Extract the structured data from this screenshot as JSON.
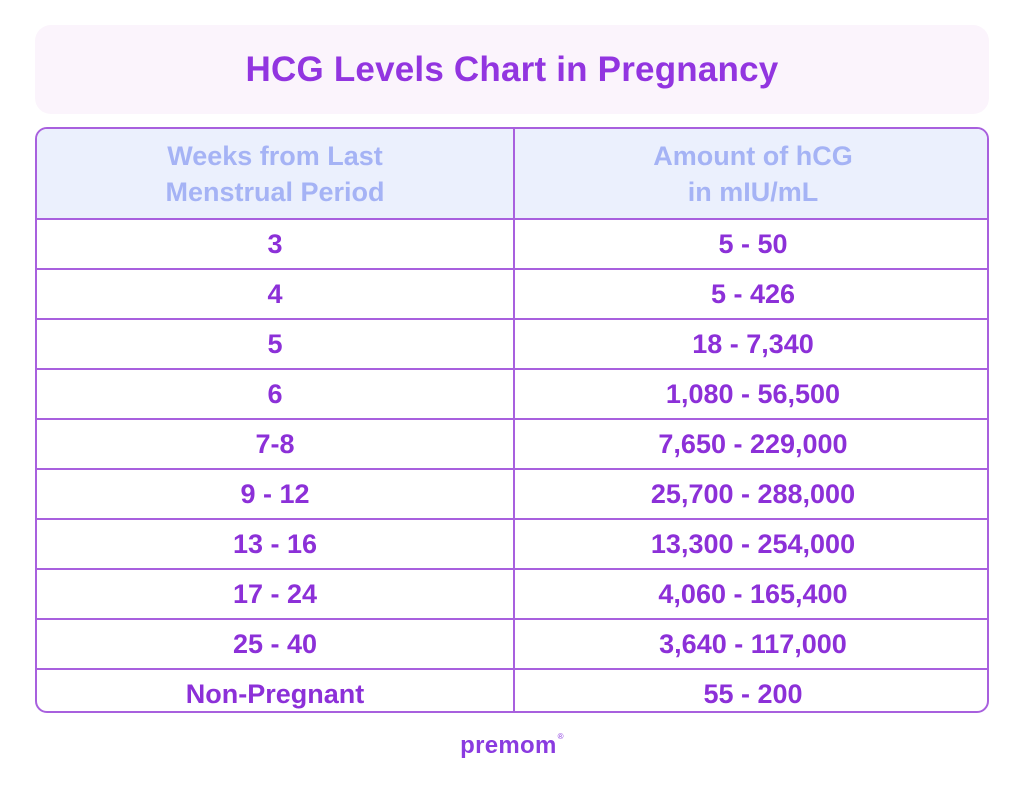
{
  "title": "HCG Levels Chart in Pregnancy",
  "table": {
    "headers": [
      [
        "Weeks from Last",
        "Menstrual Period"
      ],
      [
        "Amount of hCG",
        "in mIU/mL"
      ]
    ],
    "rows": [
      [
        "3",
        "5 - 50"
      ],
      [
        "4",
        "5 - 426"
      ],
      [
        "5",
        "18 - 7,340"
      ],
      [
        "6",
        "1,080 - 56,500"
      ],
      [
        "7-8",
        "7,650 - 229,000"
      ],
      [
        "9 - 12",
        "25,700 - 288,000"
      ],
      [
        "13 - 16",
        "13,300 - 254,000"
      ],
      [
        "17 - 24",
        "4,060 - 165,400"
      ],
      [
        "25 - 40",
        "3,640 - 117,000"
      ],
      [
        "Non-Pregnant",
        "55 - 200"
      ]
    ]
  },
  "logo": {
    "text": "premom",
    "mark": "®"
  },
  "colors": {
    "accent": "#9235e0",
    "cell_text": "#8c30d8",
    "header_text": "#a5b3f5",
    "header_bg": "#ebf0fd",
    "banner_bg": "#fbf4fc",
    "border": "#a860de"
  }
}
